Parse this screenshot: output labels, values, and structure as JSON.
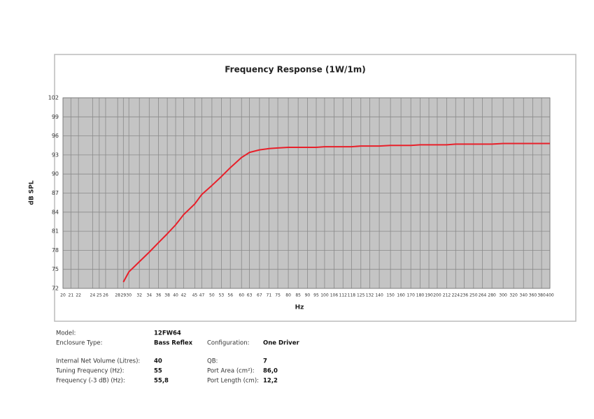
{
  "chart_data": {
    "type": "line",
    "title": "Frequency Response (1W/1m)",
    "xlabel": "Hz",
    "ylabel": "dB SPL",
    "xscale": "log",
    "xlim": [
      20,
      400
    ],
    "xticks": [
      20,
      21,
      22,
      24,
      25,
      26,
      28,
      29,
      30,
      32,
      34,
      36,
      38,
      40,
      42,
      45,
      47,
      50,
      53,
      56,
      60,
      63,
      67,
      71,
      75,
      80,
      85,
      90,
      95,
      100,
      106,
      112,
      118,
      125,
      132,
      140,
      150,
      160,
      170,
      180,
      190,
      200,
      212,
      224,
      236,
      250,
      264,
      280,
      300,
      320,
      340,
      360,
      380,
      400
    ],
    "ylim": [
      72,
      102
    ],
    "yticks": [
      72,
      75,
      78,
      81,
      84,
      87,
      90,
      93,
      96,
      99,
      102
    ],
    "grid": true,
    "color": "#e8202a",
    "x": [
      29,
      30,
      32,
      34,
      36,
      38,
      40,
      42,
      45,
      47,
      50,
      53,
      56,
      60,
      63,
      67,
      71,
      75,
      80,
      85,
      90,
      95,
      100,
      106,
      112,
      118,
      125,
      132,
      140,
      150,
      160,
      170,
      180,
      190,
      200,
      212,
      224,
      236,
      250,
      264,
      280,
      300,
      320,
      340,
      360,
      380,
      400
    ],
    "values": [
      73.0,
      74.6,
      76.2,
      77.7,
      79.2,
      80.6,
      82.0,
      83.6,
      85.3,
      86.8,
      88.2,
      89.6,
      91.0,
      92.6,
      93.4,
      93.8,
      94.0,
      94.1,
      94.2,
      94.2,
      94.2,
      94.2,
      94.3,
      94.3,
      94.3,
      94.3,
      94.4,
      94.4,
      94.4,
      94.5,
      94.5,
      94.5,
      94.6,
      94.6,
      94.6,
      94.6,
      94.7,
      94.7,
      94.7,
      94.7,
      94.7,
      94.8,
      94.8,
      94.8,
      94.8,
      94.8,
      94.8
    ]
  },
  "specs": [
    [
      "Model:",
      "12FW64"
    ],
    [
      "Enclosure Type:",
      "Bass Reflex",
      "Configuration:",
      "One Driver"
    ],
    [
      "Internal  Net Volume (Litres):",
      "40",
      "QB:",
      "7"
    ],
    [
      "Tuning Frequency (Hz):",
      "55",
      "Port Area (cm²):",
      "86,0"
    ],
    [
      "Frequency (-3 dB) (Hz):",
      "55,8",
      "Port Length (cm):",
      "12,2"
    ]
  ]
}
